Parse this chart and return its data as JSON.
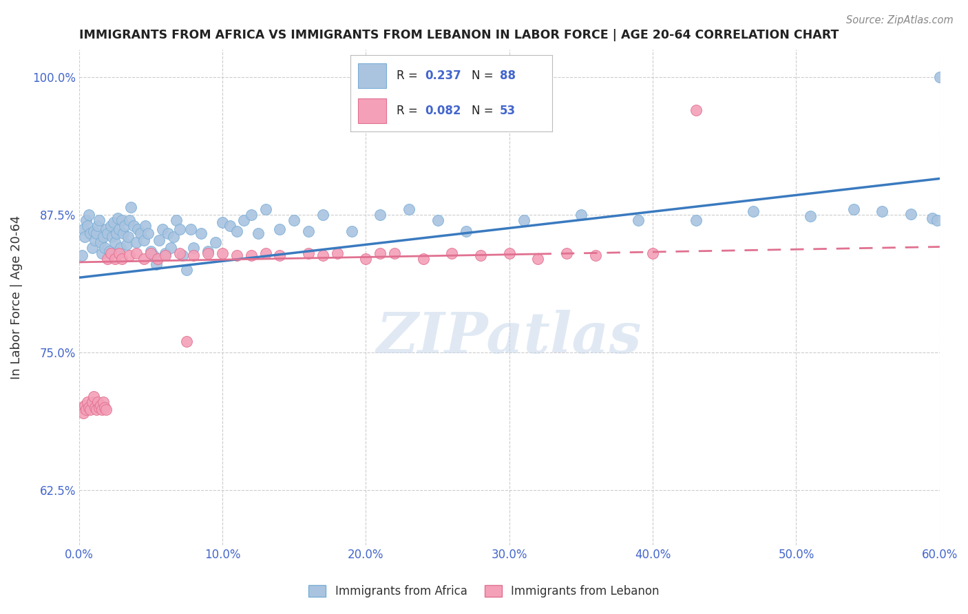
{
  "title": "IMMIGRANTS FROM AFRICA VS IMMIGRANTS FROM LEBANON IN LABOR FORCE | AGE 20-64 CORRELATION CHART",
  "source": "Source: ZipAtlas.com",
  "ylabel": "In Labor Force | Age 20-64",
  "africa_R": "0.237",
  "africa_N": "88",
  "lebanon_R": "0.082",
  "lebanon_N": "53",
  "africa_color": "#aac4e0",
  "africa_edge": "#7aaed6",
  "lebanon_color": "#f4a0b8",
  "lebanon_edge": "#e07090",
  "trend_blue": "#3a7abf",
  "trend_pink": "#e07090",
  "xlim": [
    0.0,
    0.6
  ],
  "ylim": [
    0.575,
    1.025
  ],
  "xticks": [
    0.0,
    0.1,
    0.2,
    0.3,
    0.4,
    0.5,
    0.6
  ],
  "xtick_labels": [
    "0.0%",
    "10.0%",
    "20.0%",
    "30.0%",
    "40.0%",
    "50.0%",
    "60.0%"
  ],
  "yticks": [
    0.625,
    0.75,
    0.875,
    1.0
  ],
  "ytick_labels": [
    "62.5%",
    "75.0%",
    "87.5%",
    "100.0%"
  ],
  "grid_color": "#cccccc",
  "bg_color": "#ffffff",
  "title_color": "#222222",
  "axis_color": "#4466cc",
  "watermark": "ZIPatlas",
  "watermark_color": "#c8d8ea",
  "africa_x": [
    0.002,
    0.003,
    0.004,
    0.005,
    0.006,
    0.007,
    0.008,
    0.009,
    0.01,
    0.011,
    0.012,
    0.013,
    0.014,
    0.015,
    0.016,
    0.017,
    0.018,
    0.019,
    0.02,
    0.021,
    0.022,
    0.023,
    0.024,
    0.025,
    0.026,
    0.027,
    0.028,
    0.029,
    0.03,
    0.031,
    0.032,
    0.033,
    0.034,
    0.035,
    0.036,
    0.038,
    0.04,
    0.041,
    0.043,
    0.045,
    0.046,
    0.048,
    0.05,
    0.052,
    0.054,
    0.056,
    0.058,
    0.06,
    0.062,
    0.064,
    0.066,
    0.068,
    0.07,
    0.072,
    0.075,
    0.078,
    0.08,
    0.085,
    0.09,
    0.095,
    0.1,
    0.105,
    0.11,
    0.115,
    0.12,
    0.125,
    0.13,
    0.14,
    0.15,
    0.16,
    0.17,
    0.19,
    0.21,
    0.23,
    0.25,
    0.27,
    0.31,
    0.35,
    0.39,
    0.43,
    0.47,
    0.51,
    0.54,
    0.56,
    0.58,
    0.595,
    0.598,
    0.6
  ],
  "africa_y": [
    0.838,
    0.862,
    0.855,
    0.87,
    0.865,
    0.875,
    0.858,
    0.845,
    0.86,
    0.852,
    0.858,
    0.865,
    0.87,
    0.85,
    0.84,
    0.855,
    0.845,
    0.862,
    0.858,
    0.842,
    0.865,
    0.855,
    0.868,
    0.85,
    0.858,
    0.872,
    0.862,
    0.845,
    0.87,
    0.858,
    0.865,
    0.848,
    0.855,
    0.87,
    0.882,
    0.865,
    0.85,
    0.862,
    0.858,
    0.852,
    0.865,
    0.858,
    0.842,
    0.838,
    0.83,
    0.852,
    0.862,
    0.84,
    0.858,
    0.845,
    0.855,
    0.87,
    0.862,
    0.838,
    0.825,
    0.862,
    0.845,
    0.858,
    0.842,
    0.85,
    0.868,
    0.865,
    0.86,
    0.87,
    0.875,
    0.858,
    0.88,
    0.862,
    0.87,
    0.86,
    0.875,
    0.86,
    0.875,
    0.88,
    0.87,
    0.86,
    0.87,
    0.875,
    0.87,
    0.87,
    0.878,
    0.874,
    0.88,
    0.878,
    0.876,
    0.872,
    0.87,
    1.0
  ],
  "lebanon_x": [
    0.002,
    0.003,
    0.004,
    0.005,
    0.006,
    0.007,
    0.008,
    0.009,
    0.01,
    0.011,
    0.012,
    0.013,
    0.014,
    0.015,
    0.016,
    0.017,
    0.018,
    0.019,
    0.02,
    0.022,
    0.025,
    0.028,
    0.03,
    0.035,
    0.04,
    0.045,
    0.05,
    0.055,
    0.06,
    0.07,
    0.075,
    0.08,
    0.09,
    0.1,
    0.11,
    0.12,
    0.13,
    0.14,
    0.16,
    0.17,
    0.18,
    0.2,
    0.21,
    0.22,
    0.24,
    0.26,
    0.28,
    0.3,
    0.32,
    0.34,
    0.36,
    0.4,
    0.43
  ],
  "lebanon_y": [
    0.7,
    0.695,
    0.702,
    0.698,
    0.705,
    0.7,
    0.698,
    0.705,
    0.71,
    0.7,
    0.698,
    0.705,
    0.7,
    0.702,
    0.698,
    0.705,
    0.7,
    0.698,
    0.835,
    0.84,
    0.835,
    0.84,
    0.835,
    0.838,
    0.84,
    0.835,
    0.84,
    0.835,
    0.838,
    0.84,
    0.76,
    0.838,
    0.84,
    0.84,
    0.838,
    0.838,
    0.84,
    0.838,
    0.84,
    0.838,
    0.84,
    0.835,
    0.84,
    0.84,
    0.835,
    0.84,
    0.838,
    0.84,
    0.835,
    0.84,
    0.838,
    0.84,
    0.97
  ],
  "blue_trend_x": [
    0.0,
    0.6
  ],
  "blue_trend_y": [
    0.818,
    0.908
  ],
  "pink_trend_x": [
    0.0,
    0.6
  ],
  "pink_trend_y": [
    0.832,
    0.846
  ]
}
